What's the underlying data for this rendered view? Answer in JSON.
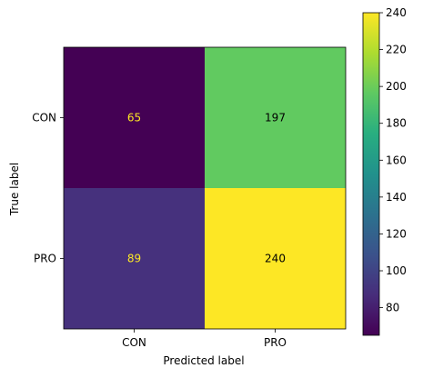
{
  "chart_data": {
    "type": "heatmap",
    "title": "",
    "xlabel": "Predicted label",
    "ylabel": "True label",
    "x_categories": [
      "CON",
      "PRO"
    ],
    "y_categories": [
      "CON",
      "PRO"
    ],
    "values": [
      [
        65,
        197
      ],
      [
        89,
        240
      ]
    ],
    "cell_labels": [
      [
        "65",
        "197"
      ],
      [
        "89",
        "240"
      ]
    ],
    "colormap": "viridis",
    "colorbar": {
      "vmin": 65,
      "vmax": 240,
      "ticks": [
        80,
        100,
        120,
        140,
        160,
        180,
        200,
        220,
        240
      ],
      "tick_labels": [
        "80",
        "100",
        "120",
        "140",
        "160",
        "180",
        "200",
        "220",
        "240"
      ]
    },
    "annotation_colors": {
      "on_dark": "#fde725",
      "on_light": "#000000"
    },
    "grid": false
  }
}
